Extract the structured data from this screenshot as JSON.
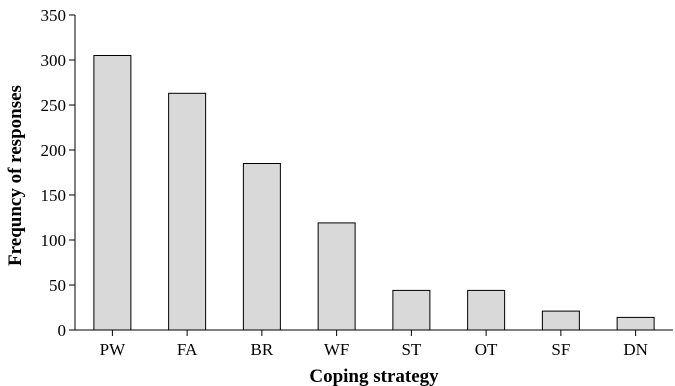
{
  "chart_data": {
    "type": "bar",
    "title": "",
    "xlabel": "Coping strategy",
    "ylabel": "Frequncy of responses",
    "categories": [
      "PW",
      "FA",
      "BR",
      "WF",
      "ST",
      "OT",
      "SF",
      "DN"
    ],
    "values": [
      305,
      263,
      185,
      119,
      44,
      44,
      21,
      14
    ],
    "ylim": [
      0,
      350
    ],
    "yticks": [
      0,
      50,
      100,
      150,
      200,
      250,
      300,
      350
    ],
    "grid": false,
    "bar_color": "#d9d9d9"
  }
}
